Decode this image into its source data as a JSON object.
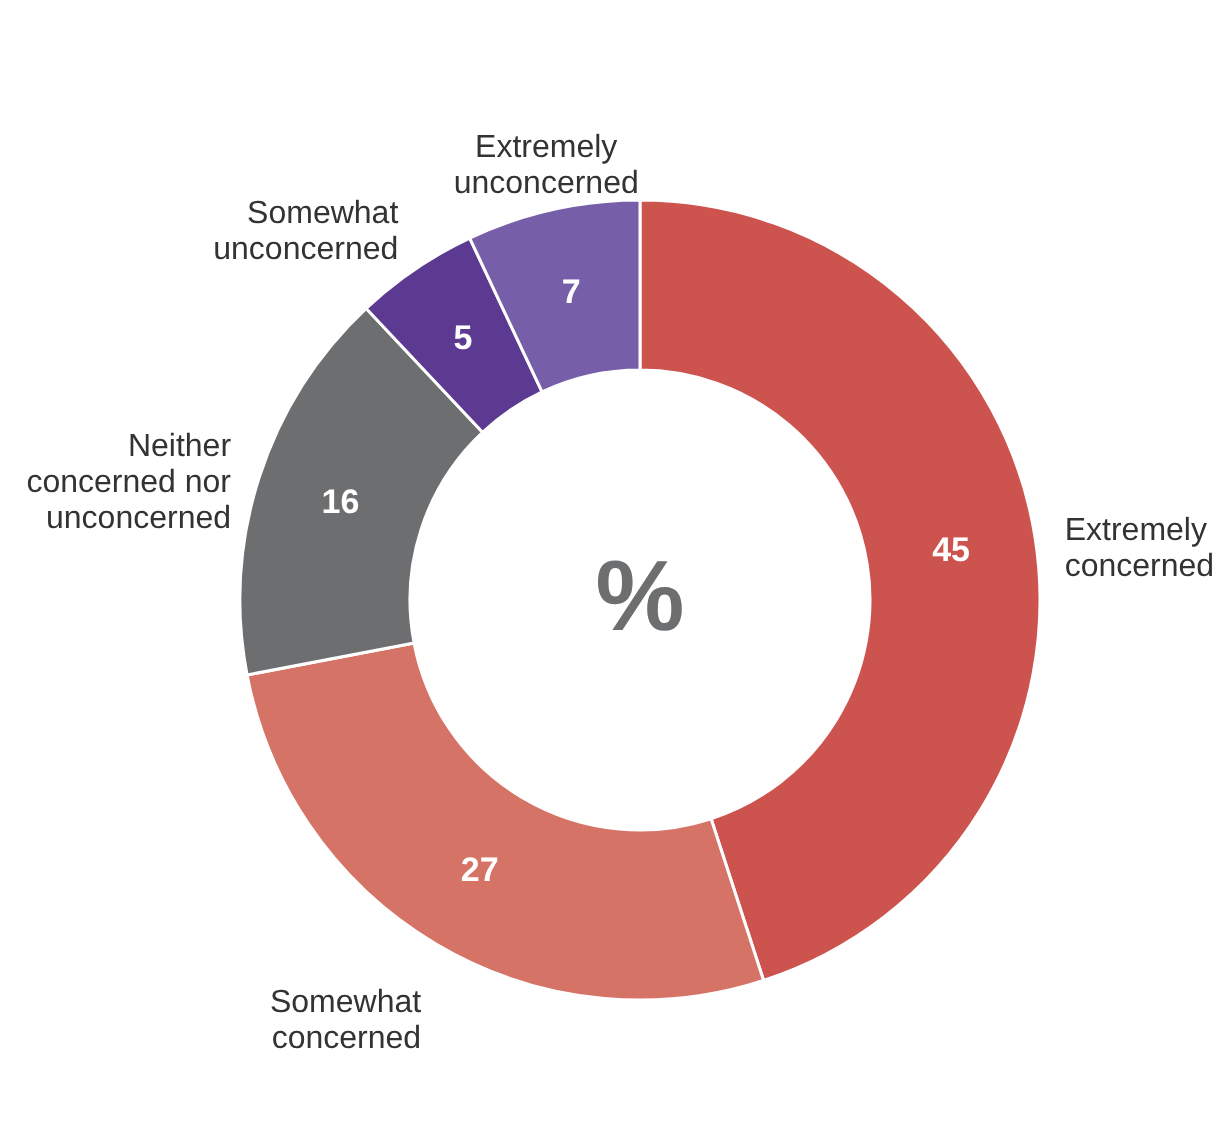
{
  "chart_data": {
    "type": "donut",
    "categories": [
      "Extremely concerned",
      "Somewhat concerned",
      "Neither concerned nor unconcerned",
      "Somewhat unconcerned",
      "Extremely unconcerned"
    ],
    "values": [
      45,
      27,
      16,
      5,
      7
    ],
    "colors": [
      "#cd534f",
      "#d57366",
      "#6d6e70",
      "#5c3a92",
      "#765ea8"
    ],
    "data_labels": true,
    "annotations": [
      "%"
    ]
  }
}
